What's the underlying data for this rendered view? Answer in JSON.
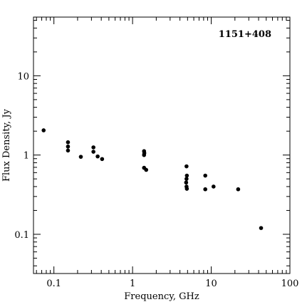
{
  "chart_data": {
    "type": "scatter",
    "annotation": "1151+408",
    "xlabel": "Frequency, GHz",
    "ylabel": "Flux Density, Jy",
    "xscale": "log",
    "yscale": "log",
    "xlim": [
      0.055,
      100
    ],
    "ylim": [
      0.032,
      55
    ],
    "grid": false,
    "x_ticks": [
      {
        "value": 0.1,
        "label": "0.1"
      },
      {
        "value": 1,
        "label": "1"
      },
      {
        "value": 10,
        "label": "10"
      },
      {
        "value": 100,
        "label": "100"
      }
    ],
    "y_ticks": [
      {
        "value": 0.1,
        "label": "0.1"
      },
      {
        "value": 1,
        "label": "1"
      },
      {
        "value": 10,
        "label": "10"
      }
    ],
    "points": [
      {
        "x": 0.074,
        "y": 2.05
      },
      {
        "x": 0.151,
        "y": 1.45
      },
      {
        "x": 0.151,
        "y": 1.28
      },
      {
        "x": 0.151,
        "y": 1.14
      },
      {
        "x": 0.22,
        "y": 0.95
      },
      {
        "x": 0.318,
        "y": 1.25
      },
      {
        "x": 0.318,
        "y": 1.1
      },
      {
        "x": 0.36,
        "y": 0.96
      },
      {
        "x": 0.41,
        "y": 0.89
      },
      {
        "x": 1.4,
        "y": 1.12
      },
      {
        "x": 1.41,
        "y": 1.06
      },
      {
        "x": 1.4,
        "y": 1.0
      },
      {
        "x": 1.4,
        "y": 0.69
      },
      {
        "x": 1.49,
        "y": 0.65
      },
      {
        "x": 4.85,
        "y": 0.72
      },
      {
        "x": 4.9,
        "y": 0.55
      },
      {
        "x": 4.85,
        "y": 0.5
      },
      {
        "x": 4.8,
        "y": 0.45
      },
      {
        "x": 4.85,
        "y": 0.4
      },
      {
        "x": 4.9,
        "y": 0.375
      },
      {
        "x": 8.4,
        "y": 0.55
      },
      {
        "x": 8.4,
        "y": 0.37
      },
      {
        "x": 10.7,
        "y": 0.4
      },
      {
        "x": 22,
        "y": 0.37
      },
      {
        "x": 43,
        "y": 0.12
      }
    ]
  }
}
